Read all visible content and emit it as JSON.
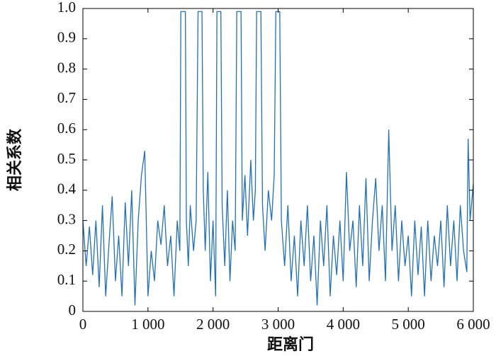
{
  "chart_data": {
    "type": "line",
    "xlabel": "距离门",
    "ylabel": "相关系数",
    "xlim": [
      0,
      6000
    ],
    "ylim": [
      0,
      1.0
    ],
    "xticks": [
      0,
      {
        "value": 1000,
        "label": "1 000"
      },
      {
        "value": 2000,
        "label": "2 000"
      },
      {
        "value": 3000,
        "label": "3 000"
      },
      {
        "value": 4000,
        "label": "4 000"
      },
      {
        "value": 5000,
        "label": "5 000"
      },
      {
        "value": 6000,
        "label": "6 000"
      }
    ],
    "yticks": [
      0,
      0.1,
      0.2,
      0.3,
      0.4,
      0.5,
      0.6,
      0.7,
      0.8,
      0.9,
      {
        "value": 1.0,
        "label": "1.0"
      }
    ],
    "x": [
      0,
      50,
      100,
      150,
      200,
      250,
      300,
      350,
      400,
      450,
      500,
      550,
      600,
      650,
      700,
      750,
      800,
      850,
      900,
      950,
      1000,
      1050,
      1100,
      1150,
      1200,
      1250,
      1300,
      1350,
      1400,
      1450,
      1490,
      1505,
      1575,
      1590,
      1620,
      1650,
      1700,
      1740,
      1770,
      1830,
      1850,
      1880,
      1920,
      1960,
      2000,
      2040,
      2060,
      2120,
      2140,
      2180,
      2220,
      2260,
      2300,
      2340,
      2365,
      2430,
      2450,
      2490,
      2530,
      2580,
      2620,
      2650,
      2670,
      2735,
      2760,
      2800,
      2850,
      2900,
      2940,
      2965,
      3025,
      3050,
      3100,
      3150,
      3200,
      3250,
      3300,
      3350,
      3400,
      3450,
      3500,
      3550,
      3600,
      3650,
      3700,
      3750,
      3800,
      3850,
      3900,
      3950,
      4000,
      4050,
      4100,
      4150,
      4200,
      4250,
      4300,
      4350,
      4400,
      4450,
      4500,
      4550,
      4600,
      4650,
      4700,
      4750,
      4800,
      4850,
      4900,
      4950,
      5000,
      5050,
      5100,
      5150,
      5200,
      5250,
      5300,
      5350,
      5400,
      5450,
      5500,
      5550,
      5600,
      5650,
      5700,
      5750,
      5800,
      5850,
      5900,
      5920,
      5950,
      6000
    ],
    "series": [
      {
        "name": "相关系数",
        "color": "#2170b8",
        "values": [
          0.3,
          0.15,
          0.28,
          0.12,
          0.3,
          0.08,
          0.35,
          0.05,
          0.22,
          0.38,
          0.1,
          0.25,
          0.05,
          0.36,
          0.15,
          0.4,
          0.02,
          0.3,
          0.45,
          0.53,
          0.05,
          0.2,
          0.1,
          0.3,
          0.22,
          0.35,
          0.15,
          0.25,
          0.05,
          0.3,
          0.2,
          0.99,
          0.99,
          0.3,
          0.15,
          0.35,
          0.2,
          0.3,
          0.99,
          0.99,
          0.4,
          0.2,
          0.46,
          0.1,
          0.3,
          0.05,
          0.99,
          0.99,
          0.35,
          0.15,
          0.4,
          0.1,
          0.3,
          0.2,
          0.99,
          0.99,
          0.3,
          0.45,
          0.25,
          0.5,
          0.3,
          0.4,
          0.99,
          0.99,
          0.35,
          0.2,
          0.4,
          0.3,
          0.45,
          0.99,
          0.99,
          0.3,
          0.15,
          0.35,
          0.1,
          0.25,
          0.05,
          0.3,
          0.15,
          0.35,
          0.1,
          0.25,
          0.02,
          0.3,
          0.15,
          0.35,
          0.05,
          0.25,
          0.12,
          0.3,
          0.1,
          0.46,
          0.2,
          0.3,
          0.08,
          0.35,
          0.15,
          0.44,
          0.1,
          0.3,
          0.44,
          0.2,
          0.35,
          0.1,
          0.6,
          0.2,
          0.35,
          0.1,
          0.3,
          0.15,
          0.25,
          0.05,
          0.3,
          0.12,
          0.28,
          0.05,
          0.3,
          0.1,
          0.25,
          0.15,
          0.3,
          0.08,
          0.35,
          0.15,
          0.3,
          0.1,
          0.35,
          0.2,
          0.13,
          0.57,
          0.3,
          0.42
        ]
      }
    ]
  }
}
